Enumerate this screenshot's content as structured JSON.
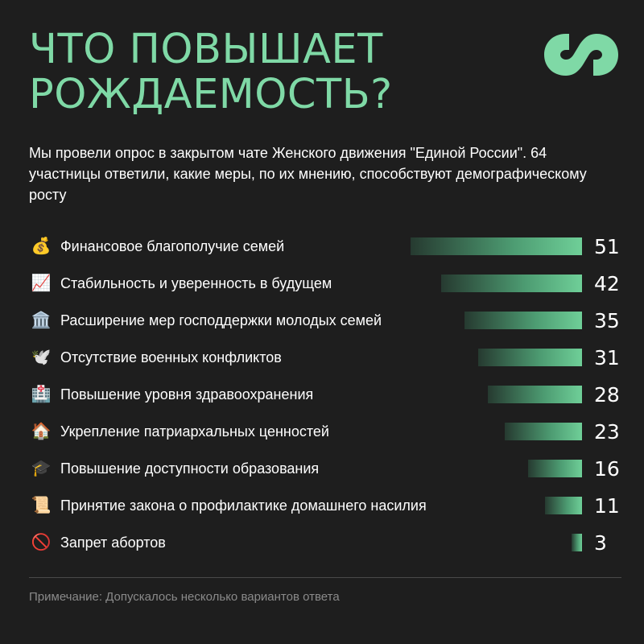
{
  "title": {
    "line1": "Что повышает",
    "line2": "рождаемость?"
  },
  "subtitle": "Мы провели опрос в закрытом чате Женского движения \"Единой России\". 64 участницы ответили, какие меры, по их мнению, способствуют демографическому росту",
  "note": "Примечание: Допускалось несколько вариантов ответа",
  "colors": {
    "background": "#1e1e1e",
    "accent": "#7fd9a6",
    "bar_end": "#6fcf98",
    "bar_start": "#263a30"
  },
  "logo": {
    "icon": "infinity-logo-icon"
  },
  "chart_data": {
    "type": "bar",
    "orientation": "horizontal",
    "categories": [
      "Финансовое благополучие семей",
      "Стабильность и уверенность в будущем",
      "Расширение мер господдержки молодых семей",
      "Отсутствие военных конфликтов",
      "Повышение уровня здравоохранения",
      "Укрепление патриархальных ценностей",
      "Повышение доступности образования",
      "Принятие закона о профилактике домашнего насилия",
      "Запрет абортов"
    ],
    "icons": [
      "💰",
      "📈",
      "🏛️",
      "🕊️",
      "🏥",
      "🏠",
      "🎓",
      "📜",
      "🚫"
    ],
    "icon_names": [
      "money-bag-icon",
      "chart-increasing-icon",
      "classical-building-icon",
      "dove-icon",
      "hospital-icon",
      "house-icon",
      "graduation-cap-icon",
      "scroll-icon",
      "prohibited-icon"
    ],
    "values": [
      51,
      42,
      35,
      31,
      28,
      23,
      16,
      11,
      3
    ],
    "value_labels": [
      "51",
      "42",
      "35",
      "31",
      "28",
      "23",
      "16",
      "11",
      "3"
    ],
    "xlim": [
      0,
      51
    ]
  }
}
